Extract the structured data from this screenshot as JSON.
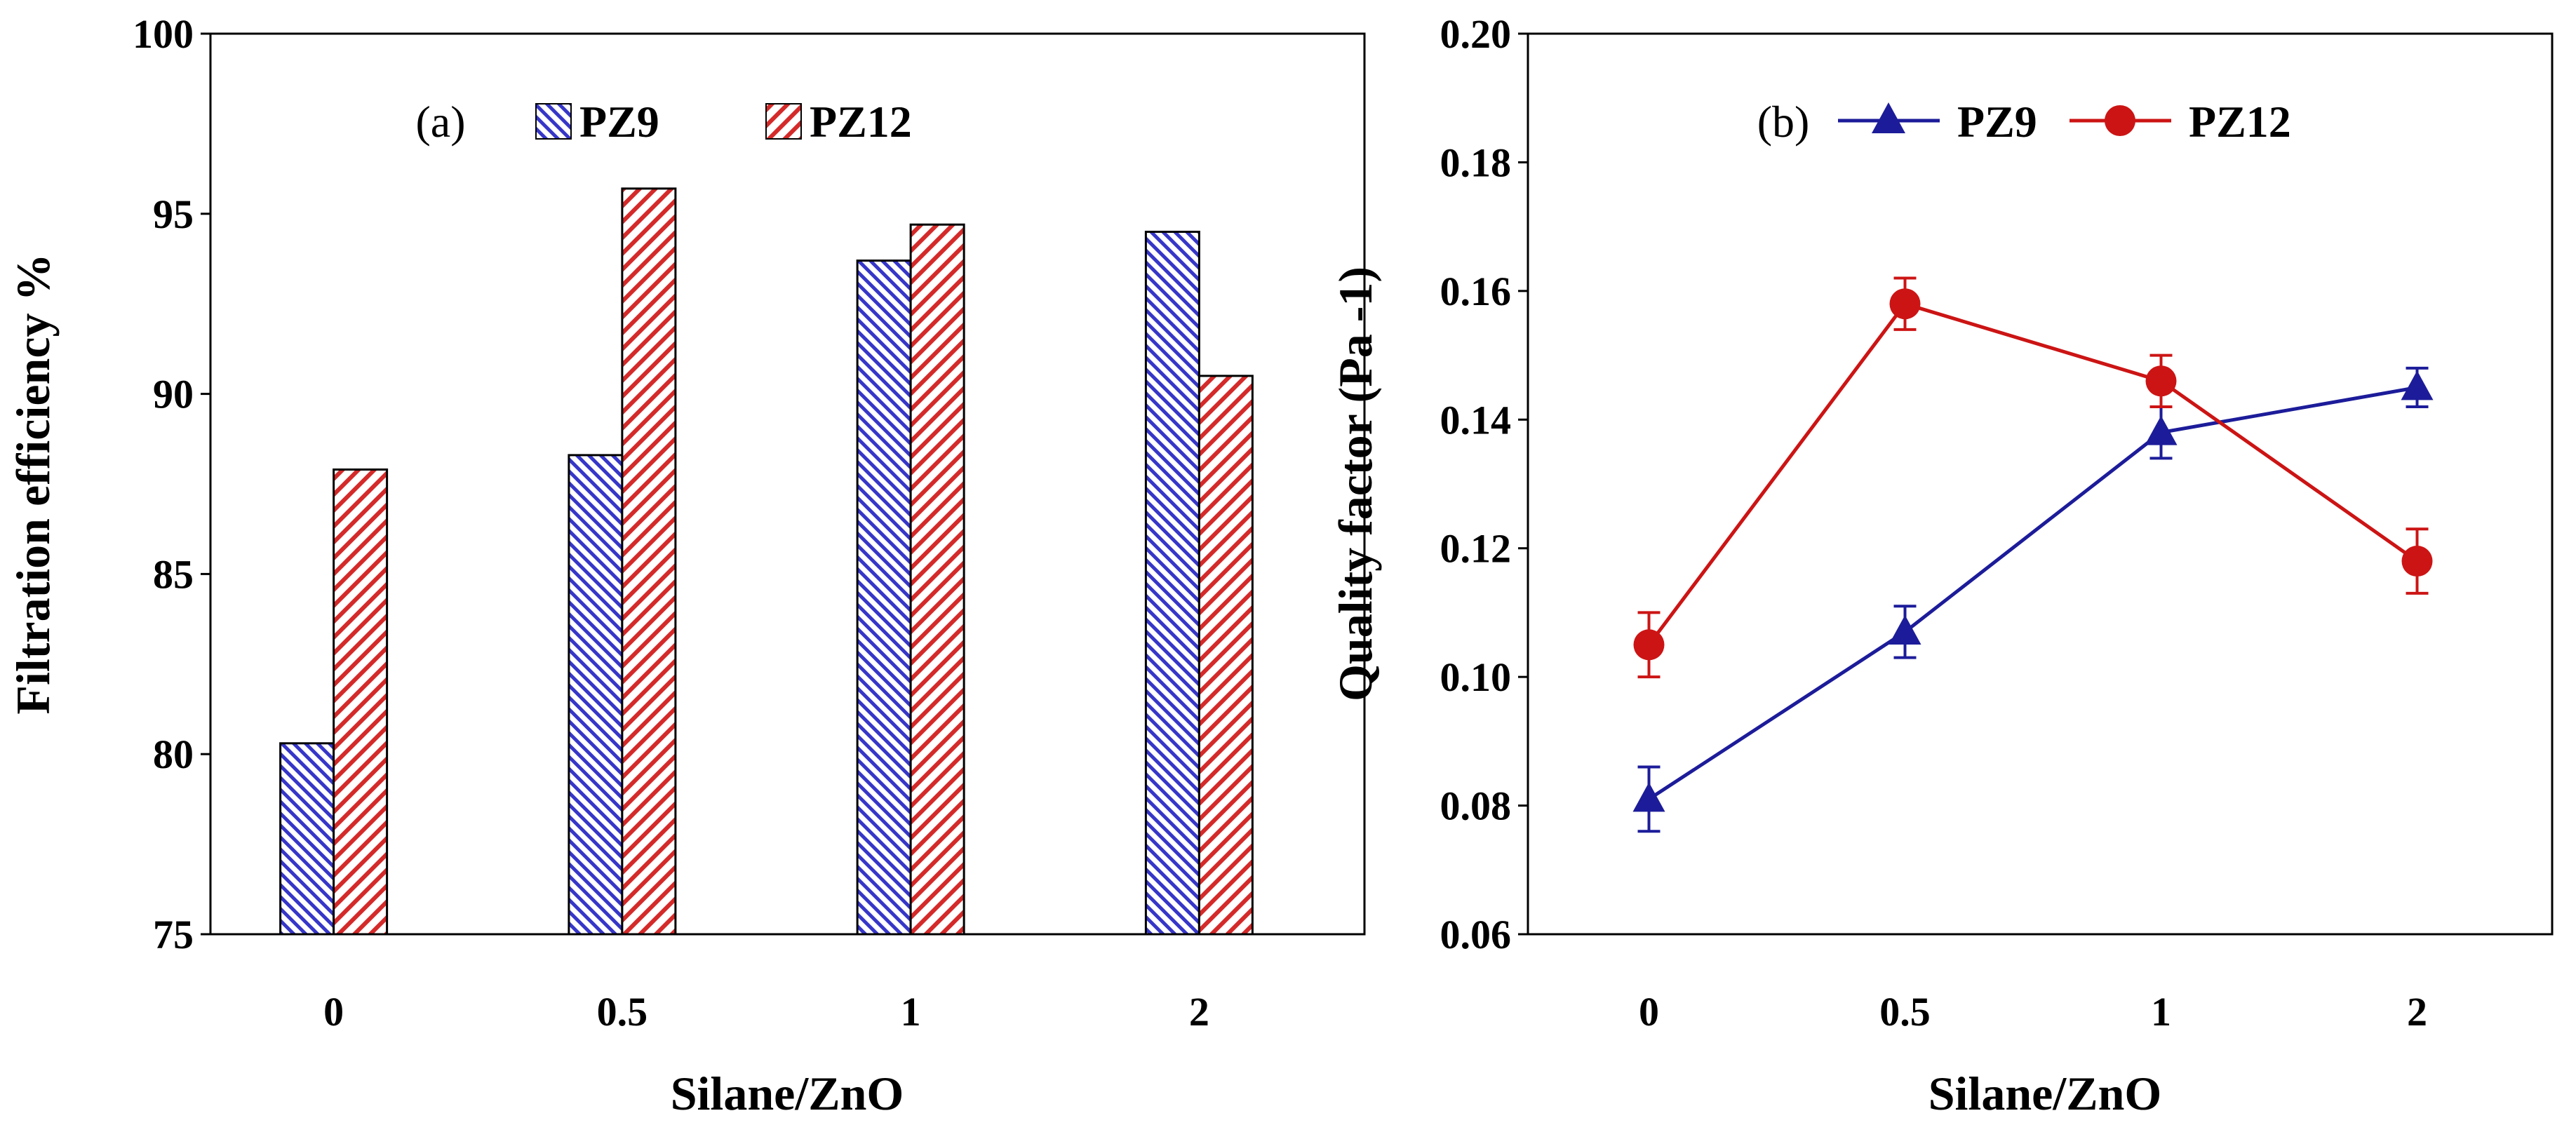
{
  "chart_data": [
    {
      "panel": "(a)",
      "type": "bar",
      "categories": [
        "0",
        "0.5",
        "1",
        "2"
      ],
      "series": [
        {
          "name": "PZ9",
          "values": [
            80.3,
            88.3,
            93.7,
            94.5
          ],
          "color": "#3636c8",
          "pattern": "hatch-backslash"
        },
        {
          "name": "PZ12",
          "values": [
            87.9,
            95.7,
            94.7,
            90.5
          ],
          "color": "#d42a2a",
          "pattern": "hatch-slash"
        }
      ],
      "xlabel": "Silane/ZnO",
      "ylabel": "Filtration efficiency %",
      "ylim": [
        75,
        100
      ],
      "yticks": [
        "75",
        "80",
        "85",
        "90",
        "95",
        "100"
      ],
      "legend": "top-center",
      "grid": false
    },
    {
      "panel": "(b)",
      "type": "line",
      "categories": [
        "0",
        "0.5",
        "1",
        "2"
      ],
      "series": [
        {
          "name": "PZ9",
          "values": [
            0.081,
            0.107,
            0.138,
            0.145
          ],
          "errors": [
            0.005,
            0.004,
            0.004,
            0.003
          ],
          "color": "#1c1c9a",
          "marker": "triangle"
        },
        {
          "name": "PZ12",
          "values": [
            0.105,
            0.158,
            0.146,
            0.118
          ],
          "errors": [
            0.005,
            0.004,
            0.004,
            0.005
          ],
          "color": "#cc1414",
          "marker": "circle"
        }
      ],
      "xlabel": "Silane/ZnO",
      "ylabel": "Quality factor (Pa -1)",
      "ylim": [
        0.06,
        0.2
      ],
      "yticks": [
        "0.06",
        "0.08",
        "0.10",
        "0.12",
        "0.14",
        "0.16",
        "0.18",
        "0.20"
      ],
      "legend": "top-center",
      "grid": false
    }
  ]
}
